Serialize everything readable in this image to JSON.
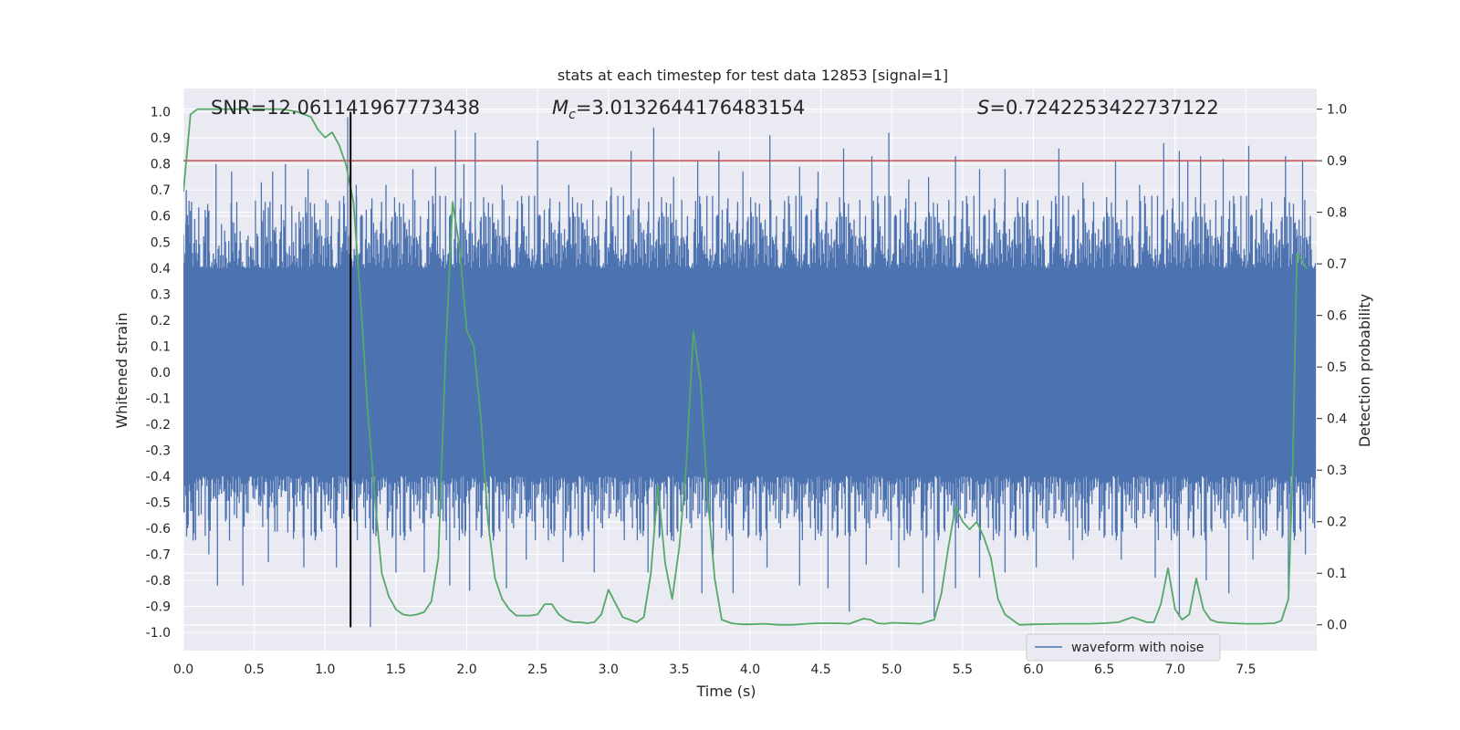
{
  "chart_data": {
    "type": "line",
    "title": "stats at each timestep for test data 12853 [signal=1]",
    "xlabel": "Time (s)",
    "ylabel": "Whitened strain",
    "ylabel_right": "Detection probability",
    "xlim": [
      0.0,
      8.0
    ],
    "ylim": [
      -1.07,
      1.09
    ],
    "ylim_right": [
      -0.05,
      1.04
    ],
    "x_ticks": [
      "0.0",
      "0.5",
      "1.0",
      "1.5",
      "2.0",
      "2.5",
      "3.0",
      "3.5",
      "4.0",
      "4.5",
      "5.0",
      "5.5",
      "6.0",
      "6.5",
      "7.0",
      "7.5"
    ],
    "y_ticks": [
      "1.0",
      "0.9",
      "0.8",
      "0.7",
      "0.6",
      "0.5",
      "0.4",
      "0.3",
      "0.2",
      "0.1",
      "0.0",
      "-0.1",
      "-0.2",
      "-0.3",
      "-0.4",
      "-0.5",
      "-0.6",
      "-0.7",
      "-0.8",
      "-0.9",
      "-1.0"
    ],
    "y_ticks_right": [
      "1.0",
      "0.9",
      "0.8",
      "0.7",
      "0.6",
      "0.5",
      "0.4",
      "0.3",
      "0.2",
      "0.1",
      "0.0"
    ],
    "annotations": {
      "snr": "SNR=12.061141967773438",
      "mc_symbol": "M",
      "mc_sub": "c",
      "mc_value": "=3.0132644176483154",
      "s_symbol": "S",
      "s_value": "=0.7242253422737122"
    },
    "legend": {
      "label": "waveform with noise",
      "position": "lower-right"
    },
    "threshold_line": {
      "y_right": 0.9,
      "color": "#c44e52"
    },
    "event_marker": {
      "x": 1.18,
      "y_range": [
        -0.98,
        1.0
      ],
      "color": "#000000"
    },
    "waveform": {
      "name": "waveform with noise",
      "color": "#4c72b0",
      "x_range": [
        0.0,
        7.99
      ],
      "core_band": [
        -0.4,
        0.4
      ],
      "spike_tops": [
        [
          0.02,
          0.7
        ],
        [
          0.05,
          0.62
        ],
        [
          0.18,
          0.62
        ],
        [
          0.23,
          0.8
        ],
        [
          0.34,
          0.77
        ],
        [
          0.55,
          0.73
        ],
        [
          0.63,
          0.77
        ],
        [
          0.72,
          0.8
        ],
        [
          0.88,
          0.78
        ],
        [
          1.02,
          0.65
        ],
        [
          1.16,
          0.98
        ],
        [
          1.22,
          0.72
        ],
        [
          1.43,
          0.72
        ],
        [
          1.62,
          0.78
        ],
        [
          1.78,
          0.79
        ],
        [
          1.92,
          0.93
        ],
        [
          1.98,
          0.8
        ],
        [
          2.06,
          0.92
        ],
        [
          2.25,
          0.72
        ],
        [
          2.5,
          0.89
        ],
        [
          2.72,
          0.72
        ],
        [
          3.02,
          0.71
        ],
        [
          3.16,
          0.85
        ],
        [
          3.32,
          0.94
        ],
        [
          3.46,
          0.75
        ],
        [
          3.63,
          0.81
        ],
        [
          3.78,
          0.85
        ],
        [
          3.95,
          0.77
        ],
        [
          4.14,
          0.91
        ],
        [
          4.35,
          0.79
        ],
        [
          4.48,
          0.77
        ],
        [
          4.66,
          0.86
        ],
        [
          4.86,
          0.83
        ],
        [
          4.98,
          0.92
        ],
        [
          5.12,
          0.74
        ],
        [
          5.26,
          0.75
        ],
        [
          5.45,
          0.83
        ],
        [
          5.62,
          0.78
        ],
        [
          5.8,
          0.78
        ],
        [
          5.96,
          0.66
        ],
        [
          6.18,
          0.86
        ],
        [
          6.35,
          0.73
        ],
        [
          6.58,
          0.81
        ],
        [
          6.75,
          0.72
        ],
        [
          6.92,
          0.88
        ],
        [
          7.03,
          0.85
        ],
        [
          7.09,
          0.81
        ],
        [
          7.18,
          0.83
        ],
        [
          7.34,
          0.82
        ],
        [
          7.52,
          0.87
        ],
        [
          7.78,
          0.83
        ],
        [
          7.9,
          0.81
        ]
      ],
      "spike_bottoms": [
        [
          0.03,
          -0.6
        ],
        [
          0.18,
          -0.7
        ],
        [
          0.24,
          -0.82
        ],
        [
          0.42,
          -0.82
        ],
        [
          0.6,
          -0.73
        ],
        [
          0.85,
          -0.75
        ],
        [
          1.08,
          -0.75
        ],
        [
          1.32,
          -0.98
        ],
        [
          1.5,
          -0.77
        ],
        [
          1.7,
          -0.77
        ],
        [
          1.88,
          -0.82
        ],
        [
          2.02,
          -0.84
        ],
        [
          2.28,
          -0.83
        ],
        [
          2.42,
          -0.72
        ],
        [
          2.68,
          -0.73
        ],
        [
          2.9,
          -0.77
        ],
        [
          3.28,
          -0.77
        ],
        [
          3.46,
          -0.65
        ],
        [
          3.66,
          -0.85
        ],
        [
          3.74,
          -0.7
        ],
        [
          3.88,
          -0.85
        ],
        [
          4.12,
          -0.75
        ],
        [
          4.35,
          -0.82
        ],
        [
          4.55,
          -0.83
        ],
        [
          4.7,
          -0.92
        ],
        [
          4.82,
          -0.74
        ],
        [
          5.05,
          -0.75
        ],
        [
          5.22,
          -0.85
        ],
        [
          5.3,
          -0.94
        ],
        [
          5.45,
          -0.83
        ],
        [
          5.62,
          -0.79
        ],
        [
          5.8,
          -0.77
        ],
        [
          6.02,
          -0.75
        ],
        [
          6.28,
          -0.72
        ],
        [
          6.62,
          -0.72
        ],
        [
          6.86,
          -0.79
        ],
        [
          7.03,
          -0.94
        ],
        [
          7.22,
          -0.8
        ],
        [
          7.38,
          -0.85
        ],
        [
          7.55,
          -0.72
        ],
        [
          7.8,
          -0.84
        ],
        [
          7.92,
          -0.7
        ]
      ]
    },
    "detection_probability": {
      "name": "Detection probability",
      "color": "#55a868",
      "axis": "right",
      "x": [
        0.0,
        0.05,
        0.1,
        0.15,
        0.2,
        0.3,
        0.4,
        0.5,
        0.6,
        0.7,
        0.8,
        0.9,
        0.95,
        1.0,
        1.05,
        1.1,
        1.15,
        1.2,
        1.25,
        1.3,
        1.35,
        1.4,
        1.45,
        1.5,
        1.55,
        1.6,
        1.65,
        1.7,
        1.75,
        1.8,
        1.85,
        1.9,
        1.95,
        2.0,
        2.05,
        2.1,
        2.15,
        2.2,
        2.25,
        2.3,
        2.35,
        2.4,
        2.45,
        2.5,
        2.55,
        2.6,
        2.65,
        2.7,
        2.75,
        2.8,
        2.85,
        2.9,
        2.95,
        3.0,
        3.1,
        3.2,
        3.25,
        3.3,
        3.35,
        3.4,
        3.45,
        3.5,
        3.55,
        3.6,
        3.65,
        3.7,
        3.75,
        3.8,
        3.85,
        3.87,
        3.9,
        3.95,
        4.0,
        4.1,
        4.2,
        4.3,
        4.4,
        4.5,
        4.6,
        4.7,
        4.8,
        4.85,
        4.9,
        4.95,
        5.0,
        5.1,
        5.2,
        5.3,
        5.35,
        5.4,
        5.45,
        5.5,
        5.55,
        5.6,
        5.65,
        5.7,
        5.75,
        5.8,
        5.85,
        5.9,
        6.0,
        6.2,
        6.4,
        6.5,
        6.6,
        6.7,
        6.8,
        6.85,
        6.9,
        6.95,
        7.0,
        7.05,
        7.1,
        7.15,
        7.2,
        7.25,
        7.3,
        7.4,
        7.5,
        7.6,
        7.7,
        7.75,
        7.8,
        7.83,
        7.86,
        7.89,
        7.93
      ],
      "values": [
        0.84,
        0.99,
        1.0,
        1.0,
        1.0,
        1.0,
        1.0,
        1.0,
        1.0,
        1.0,
        0.995,
        0.985,
        0.96,
        0.945,
        0.955,
        0.93,
        0.89,
        0.82,
        0.63,
        0.42,
        0.25,
        0.1,
        0.055,
        0.03,
        0.02,
        0.018,
        0.02,
        0.025,
        0.045,
        0.13,
        0.52,
        0.82,
        0.73,
        0.57,
        0.54,
        0.4,
        0.2,
        0.09,
        0.05,
        0.03,
        0.018,
        0.018,
        0.018,
        0.02,
        0.04,
        0.04,
        0.02,
        0.01,
        0.005,
        0.005,
        0.003,
        0.005,
        0.02,
        0.068,
        0.015,
        0.005,
        0.015,
        0.1,
        0.27,
        0.12,
        0.05,
        0.15,
        0.31,
        0.57,
        0.47,
        0.25,
        0.09,
        0.01,
        0.005,
        0.003,
        0.002,
        0.001,
        0.001,
        0.002,
        0.0,
        0.0,
        0.002,
        0.003,
        0.003,
        0.002,
        0.012,
        0.01,
        0.003,
        0.002,
        0.004,
        0.003,
        0.002,
        0.01,
        0.06,
        0.15,
        0.23,
        0.2,
        0.185,
        0.2,
        0.17,
        0.13,
        0.05,
        0.02,
        0.01,
        0.0,
        0.001,
        0.002,
        0.002,
        0.003,
        0.005,
        0.015,
        0.005,
        0.005,
        0.04,
        0.11,
        0.03,
        0.01,
        0.02,
        0.09,
        0.03,
        0.01,
        0.005,
        0.003,
        0.002,
        0.002,
        0.003,
        0.008,
        0.05,
        0.3,
        0.72,
        0.71,
        0.69
      ]
    }
  }
}
